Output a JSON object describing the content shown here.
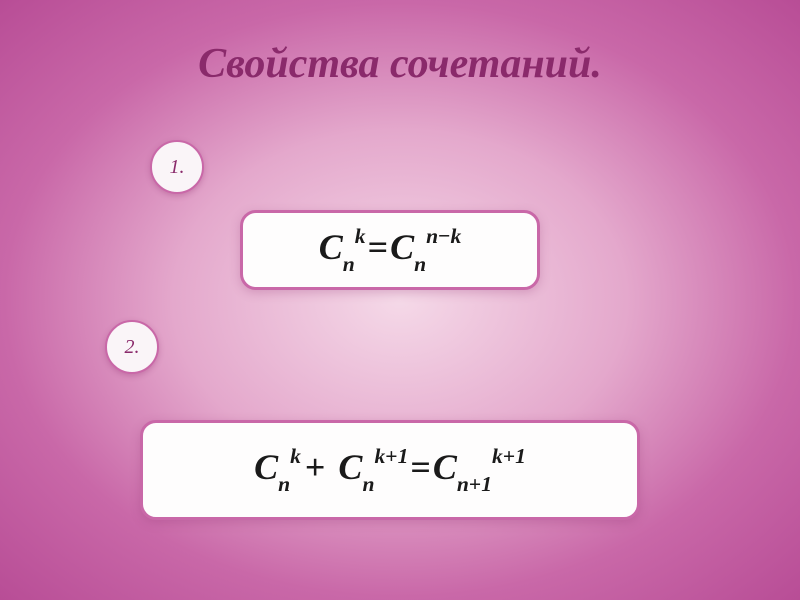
{
  "title": "Свойства сочетаний.",
  "badges": {
    "one": "1.",
    "two": "2."
  },
  "formula1": {
    "C1_base": "C",
    "C1_sub": "n",
    "C1_sup": "k",
    "eq": "=",
    "C2_base": "C",
    "C2_sub": "n",
    "C2_sup_n": "n",
    "C2_sup_minus": "−",
    "C2_sup_k": "k"
  },
  "formula2": {
    "T1_base": "C",
    "T1_sub": "n",
    "T1_sup": "k",
    "plus1": "+",
    "T2_base": "C",
    "T2_sub": "n",
    "T2_sup_k": "k",
    "T2_sup_plus": "+",
    "T2_sup_1": "1",
    "eq": "=",
    "T3_base": "C",
    "T3_sub_n": "n",
    "T3_sub_plus": "+",
    "T3_sub_1": "1",
    "T3_sup_k": "k",
    "T3_sup_plus": "+",
    "T3_sup_1": "1"
  },
  "style": {
    "title_color": "#8a2a6b",
    "title_fontsize": 42,
    "border_color": "#c968a8",
    "box_bg": "#fefdfd",
    "badge_bg": "#faf5f8",
    "formula_color": "#1a1a1a",
    "bg_gradient_inner": "#f5d9e8",
    "bg_gradient_mid": "#e4a8cc",
    "bg_gradient_outer": "#b84d96"
  }
}
